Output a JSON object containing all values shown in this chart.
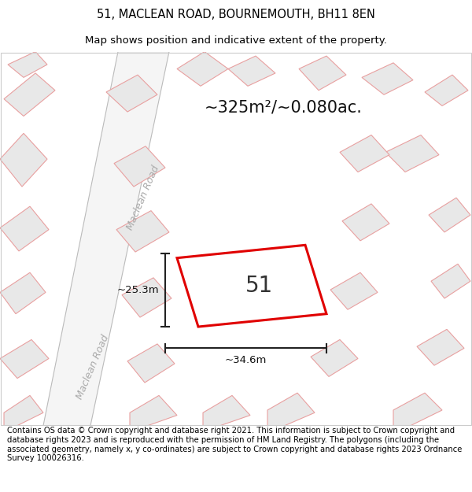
{
  "title_line1": "51, MACLEAN ROAD, BOURNEMOUTH, BH11 8EN",
  "title_line2": "Map shows position and indicative extent of the property.",
  "footer_text": "Contains OS data © Crown copyright and database right 2021. This information is subject to Crown copyright and database rights 2023 and is reproduced with the permission of HM Land Registry. The polygons (including the associated geometry, namely x, y co-ordinates) are subject to Crown copyright and database rights 2023 Ordnance Survey 100026316.",
  "area_label": "~325m²/~0.080ac.",
  "number_label": "51",
  "width_label": "~34.6m",
  "height_label": "~25.3m",
  "road_label": "Maclean Road",
  "plot_color": "#e00000",
  "building_fill": "#e8e8e8",
  "building_stroke": "#e8a0a0",
  "dim_color": "#222222",
  "title_fontsize": 10.5,
  "subtitle_fontsize": 9.5,
  "footer_fontsize": 7.2,
  "area_fontsize": 15,
  "number_fontsize": 20,
  "road_fontsize": 9,
  "dim_fontsize": 9.5
}
